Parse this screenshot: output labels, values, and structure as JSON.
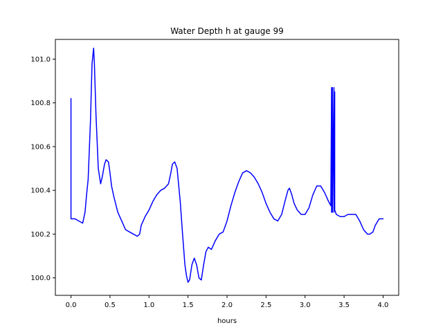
{
  "chart_data": {
    "type": "line",
    "title": "Water Depth h at gauge 99",
    "xlabel": "hours",
    "ylabel": "",
    "xlim": [
      -0.2,
      4.2
    ],
    "ylim": [
      99.92,
      101.09
    ],
    "x_ticks": [
      0.0,
      0.5,
      1.0,
      1.5,
      2.0,
      2.5,
      3.0,
      3.5,
      4.0
    ],
    "x_tick_labels": [
      "0.0",
      "0.5",
      "1.0",
      "1.5",
      "2.0",
      "2.5",
      "3.0",
      "3.5",
      "4.0"
    ],
    "y_ticks": [
      100.0,
      100.2,
      100.4,
      100.6,
      100.8,
      101.0
    ],
    "y_tick_labels": [
      "100.0",
      "100.2",
      "100.4",
      "100.6",
      "100.8",
      "101.0"
    ],
    "grid": false,
    "series": [
      {
        "color": "#0000ff",
        "x": [
          0.0,
          0.0,
          0.0,
          0.05,
          0.1,
          0.15,
          0.18,
          0.2,
          0.22,
          0.25,
          0.27,
          0.29,
          0.3,
          0.32,
          0.35,
          0.38,
          0.4,
          0.43,
          0.45,
          0.48,
          0.5,
          0.52,
          0.55,
          0.6,
          0.65,
          0.7,
          0.75,
          0.8,
          0.85,
          0.88,
          0.9,
          0.95,
          1.0,
          1.05,
          1.1,
          1.15,
          1.2,
          1.25,
          1.28,
          1.3,
          1.33,
          1.36,
          1.4,
          1.43,
          1.46,
          1.48,
          1.5,
          1.52,
          1.55,
          1.58,
          1.61,
          1.64,
          1.67,
          1.7,
          1.73,
          1.76,
          1.8,
          1.85,
          1.9,
          1.95,
          2.0,
          2.05,
          2.1,
          2.15,
          2.2,
          2.25,
          2.3,
          2.35,
          2.4,
          2.45,
          2.5,
          2.55,
          2.6,
          2.65,
          2.7,
          2.75,
          2.78,
          2.8,
          2.83,
          2.86,
          2.9,
          2.95,
          3.0,
          3.05,
          3.1,
          3.15,
          3.2,
          3.25,
          3.3,
          3.33,
          3.34,
          3.34,
          3.35,
          3.35,
          3.37,
          3.37,
          3.38,
          3.38,
          3.4,
          3.45,
          3.5,
          3.55,
          3.6,
          3.65,
          3.7,
          3.75,
          3.8,
          3.83,
          3.87,
          3.9,
          3.95,
          4.0
        ],
        "y": [
          100.82,
          100.27,
          100.27,
          100.27,
          100.26,
          100.25,
          100.3,
          100.38,
          100.45,
          100.72,
          100.98,
          101.05,
          100.98,
          100.75,
          100.5,
          100.43,
          100.46,
          100.52,
          100.54,
          100.53,
          100.48,
          100.42,
          100.37,
          100.3,
          100.26,
          100.22,
          100.21,
          100.2,
          100.19,
          100.2,
          100.24,
          100.28,
          100.31,
          100.35,
          100.38,
          100.4,
          100.41,
          100.43,
          100.48,
          100.52,
          100.53,
          100.5,
          100.35,
          100.2,
          100.06,
          100.01,
          99.98,
          99.99,
          100.06,
          100.09,
          100.06,
          100.0,
          99.99,
          100.06,
          100.12,
          100.14,
          100.13,
          100.17,
          100.2,
          100.21,
          100.26,
          100.33,
          100.39,
          100.44,
          100.48,
          100.49,
          100.48,
          100.46,
          100.43,
          100.39,
          100.34,
          100.3,
          100.27,
          100.26,
          100.29,
          100.36,
          100.4,
          100.41,
          100.38,
          100.34,
          100.31,
          100.29,
          100.29,
          100.32,
          100.38,
          100.42,
          100.42,
          100.39,
          100.35,
          100.33,
          100.87,
          100.3,
          100.87,
          100.3,
          100.87,
          100.3,
          100.85,
          100.31,
          100.29,
          100.28,
          100.28,
          100.29,
          100.29,
          100.29,
          100.26,
          100.22,
          100.2,
          100.2,
          100.21,
          100.24,
          100.27,
          100.27
        ]
      }
    ]
  }
}
